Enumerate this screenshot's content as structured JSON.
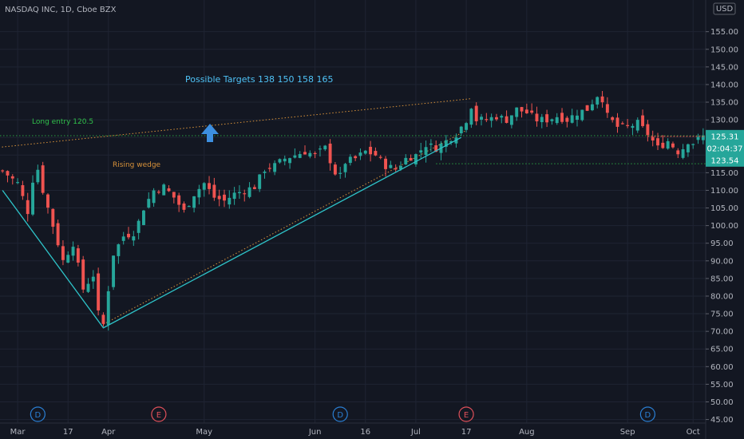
{
  "header": {
    "title": "NASDAQ INC, 1D, Cboe BZX",
    "currency": "USD"
  },
  "annotations": {
    "targets_text": "Possible Targets  138  150  158  165",
    "entry_text": "Long entry 120.5",
    "pattern_text": "Rising wedge"
  },
  "price_labels": {
    "current": "125.31",
    "countdown": "02:04:37",
    "support": "123.54"
  },
  "colors": {
    "background": "#131722",
    "grid": "#1f2433",
    "up": "#26a69a",
    "down": "#ef5350",
    "trendline": "#2ec4c9",
    "wedge": "#d8923a",
    "entry": "#30c04a",
    "arrow": "#3d8fe0",
    "target_text": "#4fc3f7",
    "dividend_badge": "#2a7fd4",
    "earnings_badge": "#e0505a"
  },
  "events": [
    {
      "label": "D",
      "type": "dividend",
      "date_index": 7
    },
    {
      "label": "E",
      "type": "earnings",
      "date_index": 31
    },
    {
      "label": "D",
      "type": "dividend",
      "date_index": 67
    },
    {
      "label": "E",
      "type": "earnings",
      "date_index": 92
    },
    {
      "label": "D",
      "type": "dividend",
      "date_index": 128
    }
  ],
  "chart_data": {
    "type": "candlestick",
    "title": "NASDAQ INC, 1D, Cboe BZX",
    "x_tick_labels": [
      "Mar",
      "17",
      "Apr",
      "May",
      "Jun",
      "16",
      "Jul",
      "17",
      "Aug",
      "Sep",
      "Oct"
    ],
    "x_tick_index": [
      3,
      13,
      21,
      40,
      62,
      72,
      82,
      92,
      104,
      124,
      137
    ],
    "y_ticks": [
      45,
      50,
      55,
      60,
      65,
      70,
      75,
      80,
      85,
      90,
      95,
      100,
      105,
      110,
      115,
      120,
      125,
      130,
      135,
      140,
      145,
      150,
      155
    ],
    "y_tick_labels": [
      "45.00",
      "50.00",
      "55.00",
      "60.00",
      "65.00",
      "70.00",
      "75.00",
      "80.00",
      "85.00",
      "90.00",
      "95.00",
      "100.00",
      "105.00",
      "110.00",
      "115.00",
      "120.00",
      "125.00",
      "130.00",
      "135.00",
      "140.00",
      "145.00",
      "150.00",
      "155.00"
    ],
    "ylim": [
      44,
      159
    ],
    "x_count": 140,
    "close_path": [
      [
        0,
        115.5
      ],
      [
        3,
        112
      ],
      [
        5,
        104
      ],
      [
        6,
        113
      ],
      [
        7,
        116
      ],
      [
        8,
        110
      ],
      [
        10,
        100
      ],
      [
        12,
        90
      ],
      [
        14,
        95
      ],
      [
        16,
        82
      ],
      [
        18,
        86
      ],
      [
        19,
        75
      ],
      [
        20,
        72
      ],
      [
        21,
        82
      ],
      [
        22,
        92
      ],
      [
        24,
        97
      ],
      [
        26,
        98
      ],
      [
        27,
        101
      ],
      [
        28,
        105
      ],
      [
        30,
        110
      ],
      [
        32,
        111
      ],
      [
        34,
        108
      ],
      [
        36,
        104
      ],
      [
        38,
        109
      ],
      [
        40,
        112
      ],
      [
        42,
        108
      ],
      [
        44,
        107
      ],
      [
        46,
        109
      ],
      [
        48,
        110
      ],
      [
        50,
        111
      ],
      [
        52,
        116
      ],
      [
        54,
        117
      ],
      [
        56,
        119
      ],
      [
        58,
        120
      ],
      [
        60,
        121
      ],
      [
        62,
        120
      ],
      [
        64,
        122
      ],
      [
        66,
        115
      ],
      [
        67,
        114
      ],
      [
        68,
        118
      ],
      [
        70,
        119
      ],
      [
        72,
        121
      ],
      [
        74,
        120
      ],
      [
        76,
        117
      ],
      [
        78,
        116
      ],
      [
        80,
        119
      ],
      [
        82,
        120
      ],
      [
        84,
        123
      ],
      [
        86,
        122
      ],
      [
        88,
        124
      ],
      [
        90,
        126
      ],
      [
        92,
        130
      ],
      [
        93,
        134
      ],
      [
        94,
        130
      ],
      [
        96,
        130
      ],
      [
        98,
        131
      ],
      [
        100,
        130
      ],
      [
        102,
        133
      ],
      [
        104,
        132
      ],
      [
        106,
        130
      ],
      [
        108,
        130
      ],
      [
        110,
        131
      ],
      [
        112,
        130
      ],
      [
        114,
        132
      ],
      [
        116,
        133
      ],
      [
        118,
        137
      ],
      [
        119,
        136
      ],
      [
        120,
        131
      ],
      [
        122,
        128
      ],
      [
        124,
        128
      ],
      [
        126,
        129
      ],
      [
        128,
        126
      ],
      [
        130,
        122
      ],
      [
        132,
        124
      ],
      [
        134,
        121
      ],
      [
        135,
        122
      ],
      [
        136,
        124
      ],
      [
        137,
        123.5
      ],
      [
        139,
        125.3
      ]
    ],
    "trendline_price": [
      [
        0,
        110
      ],
      [
        20,
        71
      ],
      [
        91,
        125
      ]
    ],
    "wedge_lines": [
      [
        [
          20,
          72
        ],
        [
          92,
          127
        ]
      ],
      [
        [
          -2,
          122
        ],
        [
          93,
          136
        ]
      ]
    ],
    "long_entry": 120.5,
    "targets": [
      138,
      150,
      158,
      165
    ],
    "support_level": 123.54,
    "current_price": 125.31
  }
}
